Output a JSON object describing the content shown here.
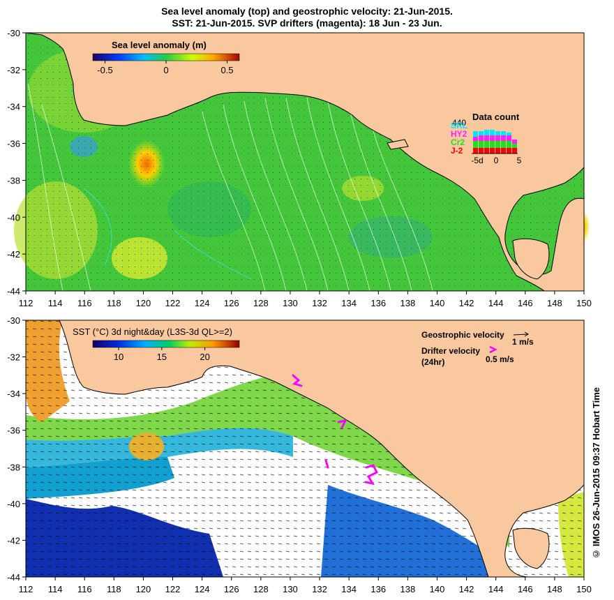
{
  "titles": {
    "line1": "Sea level anomaly (top) and geostrophic velocity: 21-Jun-2015.",
    "line2": "SST: 21-Jun-2015. SVP drifters (magenta): 18 Jun - 23 Jun."
  },
  "colors": {
    "land": "#f9c89e",
    "sla_ocean": "#44c63a",
    "sst_ocean": "#ffffff",
    "drifter": "#ff00ff",
    "contour": "#ffffff",
    "coastline": "#000000"
  },
  "axes": {
    "lon_ticks": [
      "112",
      "114",
      "116",
      "118",
      "120",
      "122",
      "124",
      "126",
      "128",
      "130",
      "132",
      "134",
      "136",
      "138",
      "140",
      "142",
      "144",
      "146",
      "148",
      "150"
    ],
    "lat_ticks": [
      "-30",
      "-32",
      "-34",
      "-36",
      "-38",
      "-40",
      "-42",
      "-44"
    ]
  },
  "top_panel": {
    "colorbar": {
      "label": "Sea level anomaly (m)",
      "ticks": [
        "-0.5",
        "0",
        "0.5"
      ],
      "range": [
        -0.6,
        0.6
      ]
    },
    "data_count": {
      "title": "Data count",
      "max_label": "440",
      "satellites": [
        "SRL",
        "HY2",
        "Cr2",
        "J-2"
      ],
      "satellite_colors": [
        "#00e5ff",
        "#ff22ff",
        "#22dd22",
        "#ff0000"
      ],
      "x_ticks": [
        "-5d",
        "0",
        "5"
      ]
    }
  },
  "bottom_panel": {
    "colorbar": {
      "label": "SST (°C) 3d night&day (L3S-3d QL>=2)",
      "ticks": [
        "10",
        "15",
        "20"
      ],
      "range": [
        7,
        24
      ]
    },
    "legend": {
      "geostrophic_label": "Geostrophic velocity",
      "geostrophic_scale": "1 m/s",
      "drifter_label": "Drifter velocity",
      "drifter_sub": "(24hr)",
      "drifter_scale": "0.5 m/s"
    }
  },
  "credit": "© IMOS 26-Jun-2015 09:37 Hobart Time"
}
